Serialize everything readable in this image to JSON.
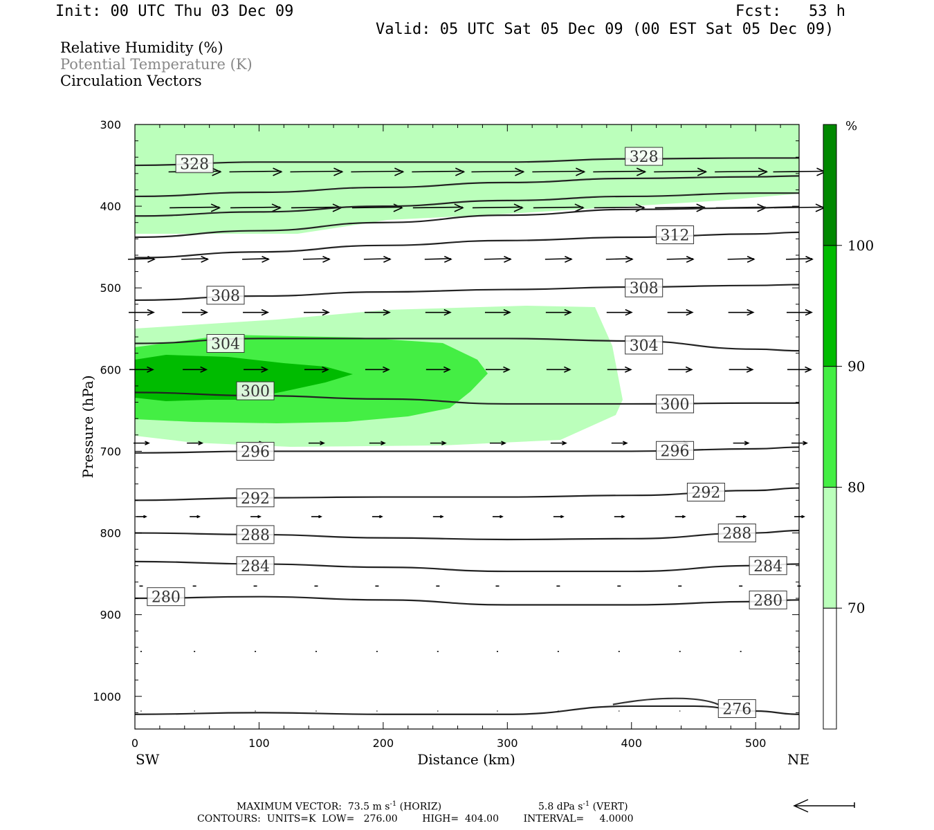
{
  "header": {
    "init": "Init: 00 UTC Thu 03 Dec 09",
    "fcst": "Fcst:   53 h",
    "valid": "Valid: 05 UTC Sat 05 Dec 09 (00 EST Sat 05 Dec 09)"
  },
  "legend": {
    "rh": "Relative Humidity (%)",
    "theta": "Potential Temperature (K)",
    "vectors": "Circulation Vectors"
  },
  "footer": {
    "max_vector_prefix": "MAXIMUM VECTOR:",
    "max_horiz": "73.5 m s",
    "exp1": "-1",
    "horiz_tag": "(HORIZ)",
    "max_vert": "5.8 dPa s",
    "exp2": "-1",
    "vert_tag": "(VERT)",
    "contours": "CONTOURS:  UNITS=K  LOW=   276.00        HIGH=  404.00        INTERVAL=     4.0000"
  },
  "colorbar": {
    "unit": "%",
    "levels": [
      "70",
      "80",
      "90",
      "100"
    ],
    "colors": [
      "#ffffff",
      "#bbffbb",
      "#44ee44",
      "#00bb00",
      "#008800"
    ]
  },
  "chart_data": {
    "type": "cross-section",
    "xlabel": "Distance (km)",
    "ylabel": "Pressure (hPa)",
    "xlim": [
      0,
      535
    ],
    "ylim": [
      300,
      1040
    ],
    "x_ticks": [
      "0",
      "100",
      "200",
      "300",
      "400",
      "500"
    ],
    "y_ticks": [
      "300",
      "400",
      "500",
      "600",
      "700",
      "800",
      "900",
      "1000"
    ],
    "x_end_labels": {
      "left": "SW",
      "right": "NE"
    },
    "theta_contours": [
      {
        "level": "276",
        "points": [
          [
            0,
            1022
          ],
          [
            100,
            1020
          ],
          [
            200,
            1022
          ],
          [
            300,
            1022
          ],
          [
            400,
            1012
          ],
          [
            450,
            1012
          ],
          [
            500,
            1018
          ],
          [
            535,
            1022
          ]
        ],
        "label_at": [
          485,
          1015
        ]
      },
      {
        "level": "280",
        "points": [
          [
            0,
            880
          ],
          [
            100,
            878
          ],
          [
            200,
            882
          ],
          [
            300,
            888
          ],
          [
            400,
            888
          ],
          [
            500,
            884
          ],
          [
            535,
            882
          ]
        ],
        "label_at": [
          25,
          878
        ],
        "label_at2": [
          510,
          882
        ]
      },
      {
        "level": "284",
        "points": [
          [
            0,
            835
          ],
          [
            100,
            838
          ],
          [
            200,
            842
          ],
          [
            300,
            847
          ],
          [
            400,
            847
          ],
          [
            500,
            840
          ],
          [
            535,
            838
          ]
        ],
        "label_at": [
          97,
          840
        ],
        "label_at2": [
          510,
          840
        ]
      },
      {
        "level": "288",
        "points": [
          [
            0,
            800
          ],
          [
            100,
            802
          ],
          [
            200,
            806
          ],
          [
            300,
            808
          ],
          [
            400,
            807
          ],
          [
            500,
            800
          ],
          [
            535,
            797
          ]
        ],
        "label_at": [
          97,
          802
        ],
        "label_at2": [
          485,
          800
        ]
      },
      {
        "level": "292",
        "points": [
          [
            0,
            760
          ],
          [
            100,
            757
          ],
          [
            200,
            756
          ],
          [
            300,
            756
          ],
          [
            400,
            754
          ],
          [
            500,
            748
          ],
          [
            535,
            745
          ]
        ],
        "label_at": [
          97,
          757
        ],
        "label_at2": [
          460,
          750
        ]
      },
      {
        "level": "296",
        "points": [
          [
            0,
            702
          ],
          [
            100,
            700
          ],
          [
            200,
            700
          ],
          [
            300,
            700
          ],
          [
            400,
            700
          ],
          [
            500,
            697
          ],
          [
            535,
            695
          ]
        ],
        "label_at": [
          97,
          700
        ],
        "label_at2": [
          435,
          699
        ]
      },
      {
        "level": "300",
        "points": [
          [
            0,
            628
          ],
          [
            100,
            632
          ],
          [
            200,
            636
          ],
          [
            300,
            642
          ],
          [
            400,
            642
          ],
          [
            500,
            641
          ],
          [
            535,
            641
          ]
        ],
        "label_at": [
          97,
          626
        ],
        "label_at2": [
          435,
          642
        ]
      },
      {
        "level": "304",
        "points": [
          [
            0,
            568
          ],
          [
            100,
            562
          ],
          [
            200,
            562
          ],
          [
            300,
            562
          ],
          [
            400,
            565
          ],
          [
            500,
            575
          ],
          [
            535,
            577
          ]
        ],
        "label_at": [
          73,
          568
        ],
        "label_at2": [
          410,
          570
        ]
      },
      {
        "level": "308",
        "points": [
          [
            0,
            515
          ],
          [
            100,
            510
          ],
          [
            200,
            505
          ],
          [
            300,
            502
          ],
          [
            400,
            499
          ],
          [
            500,
            497
          ],
          [
            535,
            496
          ]
        ],
        "label_at": [
          73,
          509
        ],
        "label_at2": [
          410,
          500
        ]
      },
      {
        "level": "312",
        "points": [
          [
            0,
            463
          ],
          [
            100,
            456
          ],
          [
            200,
            448
          ],
          [
            300,
            442
          ],
          [
            400,
            438
          ],
          [
            500,
            434
          ],
          [
            535,
            432
          ]
        ],
        "label_at": [
          435,
          435
        ]
      },
      {
        "level": "",
        "points": [
          [
            0,
            438
          ],
          [
            100,
            430
          ],
          [
            200,
            420
          ],
          [
            300,
            411
          ],
          [
            400,
            404
          ],
          [
            500,
            402
          ],
          [
            535,
            401
          ]
        ]
      },
      {
        "level": "",
        "points": [
          [
            0,
            412
          ],
          [
            100,
            407
          ],
          [
            200,
            400
          ],
          [
            300,
            393
          ],
          [
            400,
            388
          ],
          [
            500,
            384
          ],
          [
            535,
            384
          ]
        ]
      },
      {
        "level": "",
        "points": [
          [
            0,
            388
          ],
          [
            100,
            383
          ],
          [
            200,
            377
          ],
          [
            300,
            371
          ],
          [
            400,
            366
          ],
          [
            500,
            364
          ],
          [
            535,
            363
          ]
        ]
      },
      {
        "level": "328",
        "points": [
          [
            0,
            350
          ],
          [
            100,
            346
          ],
          [
            200,
            346
          ],
          [
            300,
            346
          ],
          [
            400,
            342
          ],
          [
            500,
            341
          ],
          [
            535,
            341
          ]
        ],
        "label_at": [
          48,
          348
        ],
        "label_at2": [
          410,
          339
        ]
      }
    ],
    "rh_shading_levels": [
      70,
      80,
      90,
      100
    ],
    "vector_rows_hpa": [
      358,
      402,
      465,
      530,
      600,
      690,
      780,
      865,
      945,
      1018
    ],
    "vector_cols_km": [
      5,
      48,
      97,
      146,
      195,
      244,
      292,
      341,
      390,
      439,
      488,
      535
    ],
    "max_vector": {
      "horiz": "73.5 m s-1",
      "vert": "5.8 dPa s-1"
    }
  }
}
